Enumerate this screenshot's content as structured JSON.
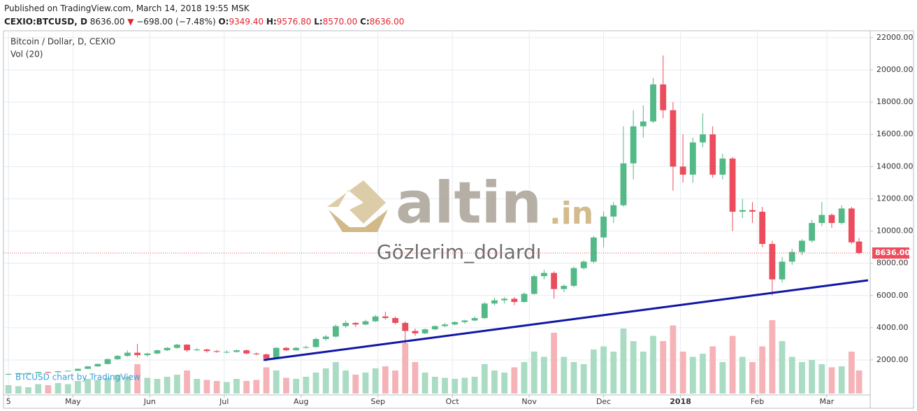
{
  "header": {
    "published": "Published on TradingView.com, March 14, 2018 19:55 MSK",
    "symbol": "CEXIO:BTCUSD, D",
    "price": "8636.00",
    "arrow": "▼",
    "change": "−698.00 (−7.48%)",
    "o_label": "O:",
    "o": "9349.40",
    "h_label": "H:",
    "h": "9576.80",
    "l_label": "L:",
    "l": "8570.00",
    "c_label": "C:",
    "c": "8636.00"
  },
  "watermark": {
    "logo_main": "altin",
    "logo_suffix": ".in",
    "caption": "Gözlerim_dolardı"
  },
  "credit": "BTCUSD chart by TradingView",
  "chart_data": {
    "type": "candlestick",
    "title": "Bitcoin / Dollar, D, CEXIO",
    "volume_label": "Vol (20)",
    "x": [
      0,
      4,
      8,
      12,
      16,
      20,
      24,
      28,
      32,
      36,
      40,
      44,
      48,
      52,
      56,
      60,
      64,
      68,
      72,
      76,
      80,
      84,
      88,
      92,
      96,
      100,
      104,
      108,
      112,
      116,
      120,
      124,
      128,
      132,
      136,
      140,
      144,
      148,
      152,
      156,
      160,
      164,
      168,
      172,
      176,
      180,
      184,
      188,
      192,
      196,
      200,
      204,
      208,
      212,
      216,
      220,
      224,
      228,
      232,
      236,
      240,
      244,
      248,
      252,
      256,
      260,
      264,
      268,
      272,
      276,
      280,
      284,
      288,
      292,
      296,
      300,
      304,
      308,
      312,
      316,
      320,
      324,
      328,
      332,
      336,
      340,
      343
    ],
    "ohlc": [
      [
        1100,
        1150,
        1080,
        1130
      ],
      [
        1130,
        1200,
        1110,
        1180
      ],
      [
        1180,
        1210,
        1150,
        1190
      ],
      [
        1190,
        1270,
        1170,
        1250
      ],
      [
        1250,
        1280,
        1200,
        1240
      ],
      [
        1240,
        1320,
        1220,
        1300
      ],
      [
        1300,
        1350,
        1280,
        1330
      ],
      [
        1330,
        1470,
        1310,
        1450
      ],
      [
        1450,
        1620,
        1430,
        1600
      ],
      [
        1600,
        1780,
        1580,
        1750
      ],
      [
        1750,
        2100,
        1720,
        2050
      ],
      [
        2050,
        2300,
        2000,
        2250
      ],
      [
        2250,
        2600,
        2200,
        2450
      ],
      [
        2450,
        3000,
        2150,
        2300
      ],
      [
        2300,
        2450,
        2200,
        2400
      ],
      [
        2400,
        2650,
        2350,
        2600
      ],
      [
        2600,
        2800,
        2550,
        2750
      ],
      [
        2750,
        3000,
        2700,
        2950
      ],
      [
        2950,
        2980,
        2500,
        2600
      ],
      [
        2600,
        2750,
        2550,
        2650
      ],
      [
        2650,
        2700,
        2450,
        2550
      ],
      [
        2550,
        2620,
        2450,
        2500
      ],
      [
        2500,
        2600,
        2400,
        2500
      ],
      [
        2500,
        2650,
        2450,
        2600
      ],
      [
        2600,
        2650,
        2350,
        2400
      ],
      [
        2400,
        2450,
        2300,
        2350
      ],
      [
        2350,
        2400,
        1900,
        2100
      ],
      [
        2100,
        2800,
        2050,
        2750
      ],
      [
        2750,
        2800,
        2550,
        2600
      ],
      [
        2600,
        2800,
        2580,
        2750
      ],
      [
        2750,
        2880,
        2700,
        2800
      ],
      [
        2800,
        3400,
        2780,
        3300
      ],
      [
        3300,
        3550,
        3200,
        3450
      ],
      [
        3450,
        4200,
        3400,
        4100
      ],
      [
        4100,
        4450,
        4000,
        4300
      ],
      [
        4300,
        4350,
        4050,
        4200
      ],
      [
        4200,
        4500,
        4150,
        4400
      ],
      [
        4400,
        4800,
        4350,
        4700
      ],
      [
        4700,
        5000,
        4500,
        4600
      ],
      [
        4600,
        4700,
        4200,
        4300
      ],
      [
        4300,
        4400,
        3000,
        3800
      ],
      [
        3800,
        3950,
        3500,
        3650
      ],
      [
        3650,
        3950,
        3600,
        3900
      ],
      [
        3900,
        4150,
        3850,
        4100
      ],
      [
        4100,
        4300,
        4050,
        4200
      ],
      [
        4200,
        4400,
        4150,
        4350
      ],
      [
        4350,
        4500,
        4250,
        4450
      ],
      [
        4450,
        4700,
        4400,
        4600
      ],
      [
        4600,
        5600,
        4550,
        5500
      ],
      [
        5500,
        5850,
        5400,
        5700
      ],
      [
        5700,
        5900,
        5500,
        5800
      ],
      [
        5800,
        5900,
        5400,
        5600
      ],
      [
        5600,
        6200,
        5550,
        6100
      ],
      [
        6100,
        7300,
        6050,
        7200
      ],
      [
        7200,
        7600,
        7000,
        7400
      ],
      [
        7400,
        7500,
        5800,
        6400
      ],
      [
        6400,
        6700,
        6200,
        6600
      ],
      [
        6600,
        7800,
        6500,
        7700
      ],
      [
        7700,
        8200,
        7600,
        8100
      ],
      [
        8100,
        9700,
        8000,
        9600
      ],
      [
        9600,
        11200,
        9000,
        10900
      ],
      [
        10900,
        11800,
        10500,
        11600
      ],
      [
        11600,
        16500,
        11500,
        14200
      ],
      [
        14200,
        17500,
        13200,
        16500
      ],
      [
        16500,
        17800,
        15800,
        16800
      ],
      [
        16800,
        19500,
        16700,
        19100
      ],
      [
        19100,
        20900,
        17000,
        17500
      ],
      [
        17500,
        18000,
        12500,
        14000
      ],
      [
        14000,
        16000,
        13000,
        13500
      ],
      [
        13500,
        15800,
        13000,
        15500
      ],
      [
        15500,
        17300,
        15200,
        16000
      ],
      [
        16000,
        16500,
        13300,
        13500
      ],
      [
        13500,
        14800,
        13200,
        14500
      ],
      [
        14500,
        14600,
        10000,
        11200
      ],
      [
        11200,
        12000,
        10800,
        11300
      ],
      [
        11300,
        11800,
        10500,
        11200
      ],
      [
        11200,
        11500,
        9000,
        9200
      ],
      [
        9200,
        9400,
        6000,
        7000
      ],
      [
        7000,
        8400,
        6800,
        8100
      ],
      [
        8100,
        8900,
        7900,
        8700
      ],
      [
        8700,
        9500,
        8500,
        9400
      ],
      [
        9400,
        10700,
        9300,
        10500
      ],
      [
        10500,
        11800,
        10300,
        11000
      ],
      [
        11000,
        11100,
        10200,
        10500
      ],
      [
        10500,
        11600,
        10400,
        11400
      ],
      [
        11400,
        11500,
        9200,
        9300
      ],
      [
        9349.4,
        9576.8,
        8570,
        8636
      ]
    ],
    "volume": [
      8,
      7,
      6,
      9,
      8,
      10,
      9,
      12,
      14,
      13,
      15,
      18,
      16,
      28,
      15,
      14,
      16,
      18,
      22,
      14,
      13,
      12,
      11,
      14,
      12,
      13,
      25,
      22,
      15,
      14,
      16,
      20,
      24,
      30,
      22,
      18,
      20,
      24,
      26,
      22,
      48,
      30,
      20,
      16,
      15,
      14,
      15,
      16,
      28,
      22,
      20,
      25,
      30,
      40,
      35,
      58,
      35,
      30,
      28,
      42,
      45,
      40,
      62,
      50,
      40,
      55,
      50,
      65,
      40,
      35,
      38,
      45,
      30,
      55,
      35,
      30,
      45,
      70,
      50,
      35,
      30,
      32,
      28,
      25,
      26,
      40,
      22
    ],
    "volume_lim": [
      0,
      100
    ],
    "up_color": "#53b987",
    "down_color": "#eb4d5c",
    "up_volume_color": "#a9dcc3",
    "down_volume_color": "#f5b3b8",
    "xlim": [
      -2,
      347.5
    ],
    "xticks": [
      {
        "value": 0,
        "label": "5"
      },
      {
        "value": 26,
        "label": "May"
      },
      {
        "value": 57,
        "label": "Jun"
      },
      {
        "value": 87,
        "label": "Jul"
      },
      {
        "value": 118,
        "label": "Aug"
      },
      {
        "value": 149,
        "label": "Sep"
      },
      {
        "value": 179,
        "label": "Oct"
      },
      {
        "value": 210,
        "label": "Nov"
      },
      {
        "value": 240,
        "label": "Dec"
      },
      {
        "value": 271,
        "label": "2018"
      },
      {
        "value": 302,
        "label": "Feb"
      },
      {
        "value": 330,
        "label": "Mar"
      }
    ],
    "ylim": [
      -170,
      22430
    ],
    "yticks": [
      {
        "value": 2000,
        "label": "2000.00"
      },
      {
        "value": 4000,
        "label": "4000.00"
      },
      {
        "value": 6000,
        "label": "6000.00"
      },
      {
        "value": 8000,
        "label": "8000.00"
      },
      {
        "value": 10000,
        "label": "10000.00"
      },
      {
        "value": 12000,
        "label": "12000.00"
      },
      {
        "value": 14000,
        "label": "14000.00"
      },
      {
        "value": 16000,
        "label": "16000.00"
      },
      {
        "value": 18000,
        "label": "18000.00"
      },
      {
        "value": 20000,
        "label": "20000.00"
      },
      {
        "value": 22000,
        "label": "22000.00"
      }
    ],
    "last_price": {
      "value": 8636,
      "label": "8636.00"
    },
    "grid": true
  }
}
